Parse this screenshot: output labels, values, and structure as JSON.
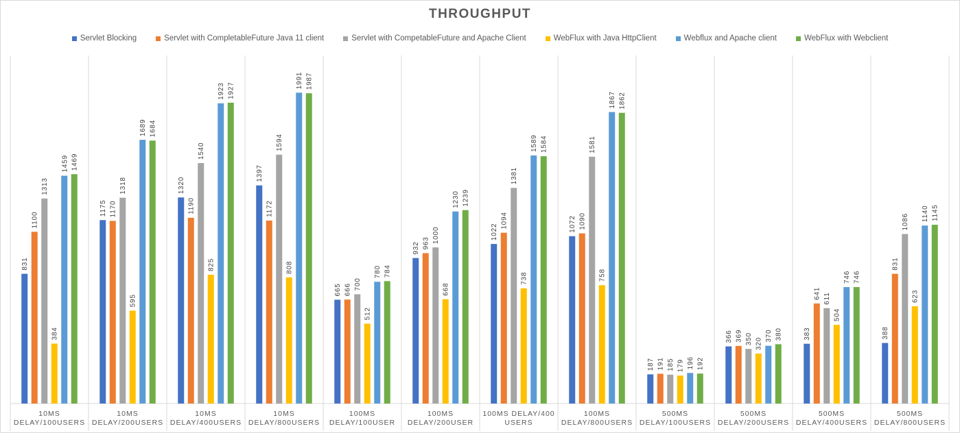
{
  "chart_data": {
    "type": "bar",
    "title": "THROUGHPUT",
    "xlabel": "",
    "ylabel": "",
    "ylim": [
      0,
      2200
    ],
    "grid": false,
    "legend_position": "top-center",
    "categories": [
      [
        "10MS",
        "DELAY/100USERS"
      ],
      [
        "10MS",
        "DELAY/200USERS"
      ],
      [
        "10MS",
        "DELAY/400USERS"
      ],
      [
        "10MS",
        "DELAY/800USERS"
      ],
      [
        "100MS",
        "DELAY/100USER"
      ],
      [
        "100MS",
        "DELAY/200USER"
      ],
      [
        "100MS DELAY/400",
        "USERS"
      ],
      [
        "100MS",
        "DELAY/800USERS"
      ],
      [
        "500MS",
        "DELAY/100USERS"
      ],
      [
        "500MS",
        "DELAY/200USERS"
      ],
      [
        "500MS",
        "DELAY/400USERS"
      ],
      [
        "500MS",
        "DELAY/800USERS"
      ]
    ],
    "series": [
      {
        "name": "Servlet Blocking",
        "color": "#4472c4",
        "values": [
          831,
          1175,
          1320,
          1397,
          665,
          932,
          1022,
          1072,
          187,
          366,
          383,
          388
        ]
      },
      {
        "name": "Servlet with CompletableFuture Java 11 client",
        "color": "#ed7d31",
        "values": [
          1100,
          1170,
          1190,
          1172,
          666,
          963,
          1094,
          1090,
          191,
          369,
          641,
          831
        ]
      },
      {
        "name": "Servlet with CompetableFuture and Apache Client",
        "color": "#a5a5a5",
        "values": [
          1313,
          1318,
          1540,
          1594,
          700,
          1000,
          1381,
          1581,
          185,
          350,
          611,
          1086
        ]
      },
      {
        "name": "WebFlux with Java HttpClient",
        "color": "#ffc000",
        "values": [
          384,
          595,
          825,
          808,
          512,
          668,
          738,
          758,
          179,
          320,
          504,
          623
        ]
      },
      {
        "name": "Webflux and Apache client",
        "color": "#5b9bd5",
        "values": [
          1459,
          1689,
          1923,
          1991,
          780,
          1230,
          1589,
          1867,
          196,
          370,
          746,
          1140
        ]
      },
      {
        "name": "WebFlux with Webclient",
        "color": "#70ad47",
        "values": [
          1469,
          1684,
          1927,
          1987,
          784,
          1239,
          1584,
          1862,
          192,
          380,
          746,
          1145
        ]
      }
    ]
  }
}
